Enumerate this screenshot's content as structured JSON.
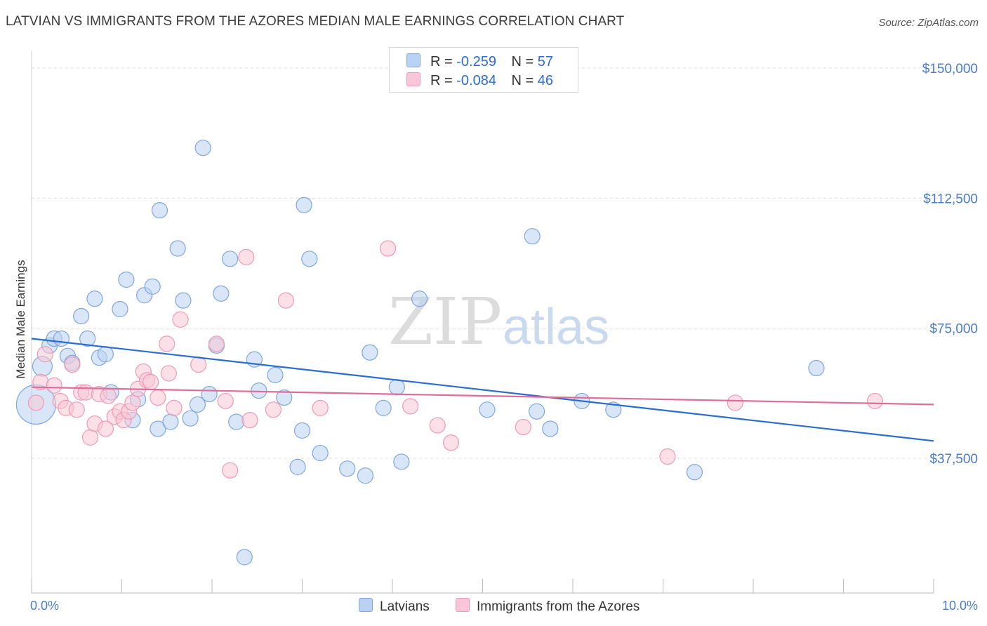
{
  "title": "LATVIAN VS IMMIGRANTS FROM THE AZORES MEDIAN MALE EARNINGS CORRELATION CHART",
  "source": "Source: ZipAtlas.com",
  "watermark": {
    "zip": "ZIP",
    "atlas": "atlas"
  },
  "legend": {
    "r_label": "R =",
    "n_label": "N =",
    "series": [
      {
        "name": "Latvians",
        "r": "-0.259",
        "n": "57"
      },
      {
        "name": "Immigrants from the Azores",
        "r": "-0.084",
        "n": "46"
      }
    ]
  },
  "colors": {
    "latvians_fill": "#b9d2f3",
    "latvians_stroke": "#7fa7de",
    "latvians_line": "#2a6dd1",
    "azores_fill": "#f8c6d6",
    "azores_stroke": "#ee9ab6",
    "azores_line": "#e06c97",
    "grid": "#dddddd",
    "axis_label": "#4a7cc9"
  },
  "chart_data": {
    "type": "scatter",
    "title": "LATVIAN VS IMMIGRANTS FROM THE AZORES MEDIAN MALE EARNINGS CORRELATION CHART",
    "xlabel": "",
    "ylabel": "Median Male Earnings",
    "xlim": [
      0,
      10
    ],
    "ylim": [
      0,
      155000
    ],
    "x_tick_labels": [
      {
        "value": 0,
        "label": "0.0%"
      },
      {
        "value": 10,
        "label": "10.0%"
      }
    ],
    "y_ticks": [
      {
        "value": 37500,
        "label": "$37,500"
      },
      {
        "value": 75000,
        "label": "$75,000"
      },
      {
        "value": 112500,
        "label": "$112,500"
      },
      {
        "value": 150000,
        "label": "$150,000"
      }
    ],
    "series": [
      {
        "name": "Latvians",
        "trend": {
          "x": [
            0,
            10
          ],
          "y": [
            72000,
            42500
          ]
        },
        "points": [
          [
            0.05,
            53000,
            28
          ],
          [
            0.12,
            64000,
            14
          ],
          [
            0.2,
            70000,
            11
          ],
          [
            0.25,
            72000,
            11
          ],
          [
            0.33,
            72000,
            11
          ],
          [
            0.4,
            67000,
            11
          ],
          [
            0.45,
            65000,
            11
          ],
          [
            0.55,
            78500,
            11
          ],
          [
            0.62,
            72000,
            11
          ],
          [
            0.7,
            83500,
            11
          ],
          [
            0.75,
            66500,
            11
          ],
          [
            0.82,
            67500,
            11
          ],
          [
            0.88,
            56500,
            11
          ],
          [
            0.98,
            80500,
            11
          ],
          [
            1.05,
            89000,
            11
          ],
          [
            1.12,
            48500,
            11
          ],
          [
            1.18,
            54500,
            11
          ],
          [
            1.25,
            84500,
            11
          ],
          [
            1.34,
            87000,
            11
          ],
          [
            1.4,
            46000,
            11
          ],
          [
            1.42,
            109000,
            11
          ],
          [
            1.54,
            48000,
            11
          ],
          [
            1.62,
            98000,
            11
          ],
          [
            1.68,
            83000,
            11
          ],
          [
            1.76,
            49000,
            11
          ],
          [
            1.84,
            53000,
            11
          ],
          [
            1.9,
            127000,
            11
          ],
          [
            1.97,
            56000,
            11
          ],
          [
            2.05,
            70000,
            11
          ],
          [
            2.1,
            85000,
            11
          ],
          [
            2.2,
            95000,
            11
          ],
          [
            2.27,
            48000,
            11
          ],
          [
            2.36,
            9000,
            11
          ],
          [
            2.47,
            66000,
            11
          ],
          [
            2.52,
            57000,
            11
          ],
          [
            2.7,
            61500,
            11
          ],
          [
            2.8,
            55000,
            11
          ],
          [
            2.95,
            35000,
            11
          ],
          [
            3.0,
            45500,
            11
          ],
          [
            3.02,
            110500,
            11
          ],
          [
            3.08,
            95000,
            11
          ],
          [
            3.2,
            39000,
            11
          ],
          [
            3.5,
            34500,
            11
          ],
          [
            3.7,
            32500,
            11
          ],
          [
            3.75,
            68000,
            11
          ],
          [
            3.9,
            52000,
            11
          ],
          [
            4.05,
            58000,
            11
          ],
          [
            4.1,
            36500,
            11
          ],
          [
            4.3,
            83500,
            11
          ],
          [
            5.05,
            51500,
            11
          ],
          [
            5.55,
            101500,
            11
          ],
          [
            5.6,
            51000,
            11
          ],
          [
            5.75,
            46000,
            11
          ],
          [
            6.1,
            54000,
            11
          ],
          [
            6.45,
            51500,
            11
          ],
          [
            7.35,
            33500,
            11
          ],
          [
            8.7,
            63500,
            11
          ]
        ]
      },
      {
        "name": "Immigrants from the Azores",
        "trend": {
          "x": [
            0,
            10
          ],
          "y": [
            58000,
            53000
          ]
        },
        "points": [
          [
            0.05,
            53500,
            11
          ],
          [
            0.1,
            59500,
            11
          ],
          [
            0.15,
            67500,
            11
          ],
          [
            0.25,
            58500,
            11
          ],
          [
            0.32,
            54000,
            11
          ],
          [
            0.38,
            52000,
            11
          ],
          [
            0.45,
            64500,
            11
          ],
          [
            0.5,
            51500,
            11
          ],
          [
            0.55,
            56500,
            11
          ],
          [
            0.6,
            56500,
            11
          ],
          [
            0.65,
            43500,
            11
          ],
          [
            0.7,
            47500,
            11
          ],
          [
            0.75,
            56000,
            11
          ],
          [
            0.82,
            46000,
            11
          ],
          [
            0.85,
            55500,
            11
          ],
          [
            0.92,
            49500,
            11
          ],
          [
            0.98,
            51000,
            11
          ],
          [
            1.02,
            48500,
            11
          ],
          [
            1.08,
            51000,
            11
          ],
          [
            1.12,
            53500,
            11
          ],
          [
            1.18,
            57500,
            11
          ],
          [
            1.24,
            62500,
            11
          ],
          [
            1.28,
            60000,
            11
          ],
          [
            1.32,
            59500,
            11
          ],
          [
            1.4,
            55000,
            11
          ],
          [
            1.5,
            70500,
            11
          ],
          [
            1.52,
            62000,
            11
          ],
          [
            1.58,
            52000,
            11
          ],
          [
            1.65,
            77500,
            11
          ],
          [
            1.85,
            64500,
            11
          ],
          [
            2.05,
            70500,
            11
          ],
          [
            2.15,
            54000,
            11
          ],
          [
            2.2,
            34000,
            11
          ],
          [
            2.38,
            95500,
            11
          ],
          [
            2.42,
            48500,
            11
          ],
          [
            2.68,
            51500,
            11
          ],
          [
            2.82,
            83000,
            11
          ],
          [
            3.2,
            52000,
            11
          ],
          [
            3.95,
            98000,
            11
          ],
          [
            4.2,
            52500,
            11
          ],
          [
            4.5,
            47000,
            11
          ],
          [
            4.65,
            42000,
            11
          ],
          [
            5.45,
            46500,
            11
          ],
          [
            7.05,
            38000,
            11
          ],
          [
            7.8,
            53500,
            11
          ],
          [
            9.35,
            54000,
            11
          ]
        ]
      }
    ]
  }
}
